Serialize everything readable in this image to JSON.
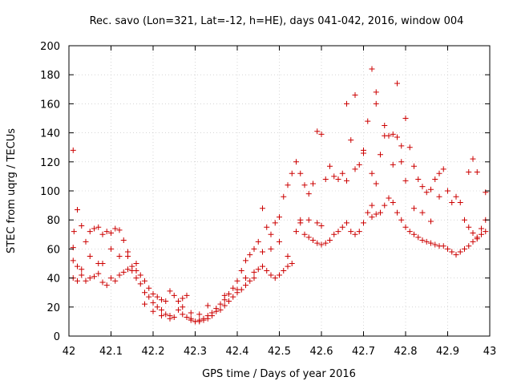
{
  "chart_data": {
    "type": "scatter",
    "title": "Rec. savo (Lon=321, Lat=-12, h=HE), days 041-042, 2016, window 004",
    "xlabel": "GPS time / Days of year 2016",
    "ylabel": "STEC from uqrg / TECUs",
    "xlim": [
      42,
      43
    ],
    "ylim": [
      0,
      200
    ],
    "x_ticks": [
      42,
      42.1,
      42.2,
      42.3,
      42.4,
      42.5,
      42.6,
      42.7,
      42.8,
      42.9,
      43
    ],
    "x_tick_labels": [
      "42",
      "42.1",
      "42.2",
      "42.3",
      "42.4",
      "42.5",
      "42.6",
      "42.7",
      "42.8",
      "42.9",
      "43"
    ],
    "y_ticks": [
      0,
      20,
      40,
      60,
      80,
      100,
      120,
      140,
      160,
      180,
      200
    ],
    "y_tick_labels": [
      "0",
      "20",
      "40",
      "60",
      "80",
      "100",
      "120",
      "140",
      "160",
      "180",
      "200"
    ],
    "grid": true,
    "marker": "plus",
    "color": "#cc0000",
    "x": [
      42.01,
      42.01,
      42.012,
      42.02,
      42.03,
      42.04,
      42.05,
      42.06,
      42.07,
      42.01,
      42.02,
      42.03,
      42.04,
      42.05,
      42.06,
      42.07,
      42.01,
      42.02,
      42.03,
      42.05,
      42.07,
      42.08,
      42.09,
      42.1,
      42.11,
      42.12,
      42.13,
      42.14,
      42.15,
      42.16,
      42.17,
      42.08,
      42.09,
      42.1,
      42.11,
      42.12,
      42.13,
      42.14,
      42.15,
      42.16,
      42.17,
      42.08,
      42.1,
      42.12,
      42.14,
      42.16,
      42.18,
      42.19,
      42.2,
      42.21,
      42.22,
      42.23,
      42.24,
      42.25,
      42.18,
      42.19,
      42.2,
      42.21,
      42.22,
      42.23,
      42.24,
      42.25,
      42.18,
      42.2,
      42.22,
      42.24,
      42.26,
      42.27,
      42.28,
      42.29,
      42.3,
      42.31,
      42.32,
      42.33,
      42.34,
      42.35,
      42.26,
      42.27,
      42.28,
      42.29,
      42.3,
      42.31,
      42.32,
      42.33,
      42.34,
      42.35,
      42.27,
      42.29,
      42.31,
      42.33,
      42.36,
      42.37,
      42.38,
      42.39,
      42.4,
      42.41,
      42.42,
      42.43,
      42.44,
      42.36,
      42.37,
      42.38,
      42.39,
      42.4,
      42.41,
      42.42,
      42.43,
      42.44,
      42.37,
      42.4,
      42.42,
      42.44,
      42.45,
      42.46,
      42.47,
      42.48,
      42.49,
      42.5,
      42.51,
      42.52,
      42.53,
      42.45,
      42.46,
      42.47,
      42.48,
      42.49,
      42.5,
      42.51,
      42.52,
      42.53,
      42.46,
      42.48,
      42.5,
      42.52,
      42.54,
      42.55,
      42.56,
      42.57,
      42.58,
      42.59,
      42.6,
      42.61,
      42.62,
      42.54,
      42.55,
      42.56,
      42.57,
      42.58,
      42.59,
      42.6,
      42.61,
      42.62,
      42.55,
      42.57,
      42.59,
      42.6,
      42.63,
      42.64,
      42.65,
      42.66,
      42.67,
      42.68,
      42.69,
      42.7,
      42.71,
      42.63,
      42.64,
      42.65,
      42.66,
      42.67,
      42.68,
      42.69,
      42.7,
      42.71,
      42.66,
      42.68,
      42.7,
      42.72,
      42.72,
      42.73,
      42.73,
      42.72,
      42.73,
      42.74,
      42.75,
      42.76,
      42.77,
      42.78,
      42.79,
      42.8,
      42.72,
      42.73,
      42.74,
      42.75,
      42.76,
      42.77,
      42.78,
      42.79,
      42.8,
      42.75,
      42.78,
      42.77,
      42.79,
      42.8,
      42.81,
      42.82,
      42.83,
      42.84,
      42.85,
      42.86,
      42.87,
      42.88,
      42.89,
      42.81,
      42.82,
      42.83,
      42.84,
      42.85,
      42.86,
      42.87,
      42.88,
      42.89,
      42.82,
      42.84,
      42.86,
      42.88,
      42.9,
      42.91,
      42.92,
      42.93,
      42.94,
      42.95,
      42.96,
      42.97,
      42.98,
      42.99,
      42.9,
      42.91,
      42.92,
      42.93,
      42.94,
      42.95,
      42.96,
      42.97,
      42.98,
      42.99,
      42.95,
      42.96,
      42.97,
      42.99
    ],
    "y": [
      128,
      61,
      72,
      87,
      76,
      65,
      72,
      74,
      75,
      40,
      38,
      42,
      38,
      40,
      41,
      43,
      52,
      48,
      46,
      55,
      50,
      70,
      72,
      71,
      74,
      73,
      66,
      55,
      45,
      40,
      36,
      37,
      35,
      40,
      38,
      42,
      44,
      46,
      48,
      50,
      42,
      50,
      60,
      55,
      58,
      45,
      38,
      33,
      29,
      27,
      25,
      24,
      31,
      28,
      30,
      27,
      23,
      20,
      18,
      15,
      14,
      13,
      22,
      17,
      14,
      12,
      24,
      26,
      28,
      12,
      10,
      11,
      12,
      14,
      16,
      19,
      18,
      15,
      13,
      11,
      10,
      10,
      11,
      12,
      14,
      17,
      20,
      16,
      15,
      21,
      22,
      25,
      29,
      33,
      38,
      45,
      52,
      56,
      60,
      18,
      21,
      24,
      27,
      30,
      32,
      35,
      38,
      40,
      28,
      32,
      40,
      44,
      65,
      88,
      75,
      70,
      78,
      82,
      96,
      104,
      112,
      46,
      48,
      45,
      42,
      40,
      42,
      45,
      48,
      50,
      58,
      60,
      65,
      55,
      120,
      112,
      104,
      98,
      105,
      141,
      139,
      108,
      117,
      72,
      78,
      70,
      68,
      66,
      64,
      63,
      64,
      66,
      80,
      80,
      78,
      76,
      110,
      108,
      112,
      107,
      135,
      115,
      118,
      128,
      148,
      70,
      72,
      75,
      78,
      72,
      70,
      72,
      78,
      85,
      160,
      166,
      126,
      184,
      90,
      168,
      160,
      112,
      105,
      125,
      138,
      138,
      139,
      137,
      131,
      150,
      82,
      84,
      85,
      90,
      95,
      92,
      85,
      80,
      75,
      145,
      174,
      118,
      120,
      107,
      130,
      117,
      108,
      103,
      99,
      101,
      108,
      112,
      115,
      72,
      70,
      68,
      66,
      65,
      64,
      63,
      62,
      62,
      88,
      85,
      79,
      96,
      100,
      92,
      96,
      92,
      80,
      75,
      71,
      67,
      74,
      80,
      60,
      58,
      56,
      58,
      60,
      62,
      65,
      68,
      70,
      72,
      113,
      122,
      113,
      99
    ]
  }
}
